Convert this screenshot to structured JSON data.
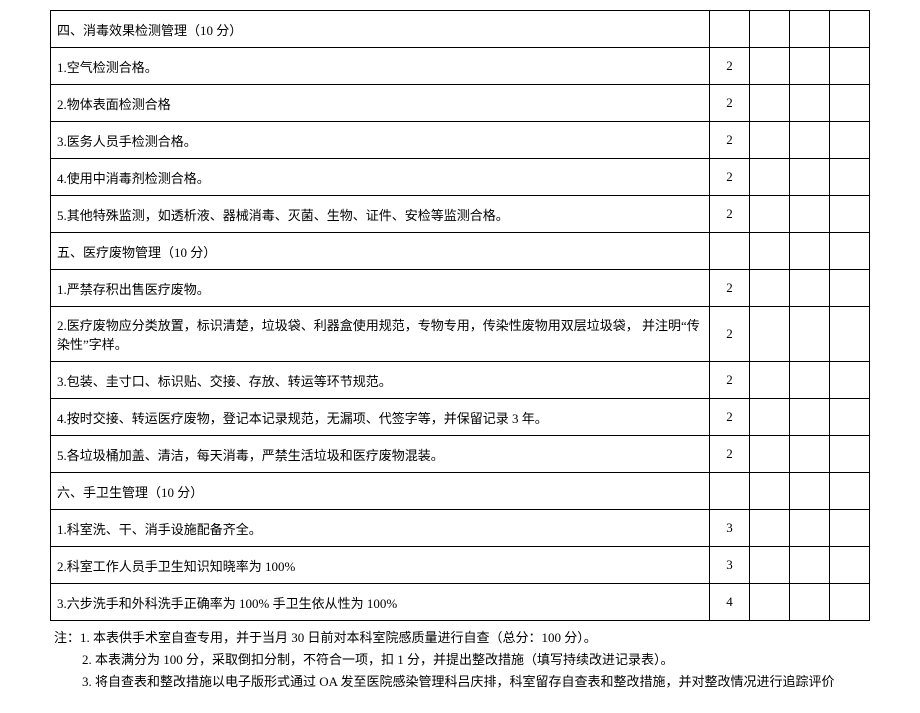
{
  "table": {
    "col_widths": {
      "desc": "auto",
      "score": 40,
      "blank": 40
    },
    "rows": [
      {
        "desc": "四、消毒效果检测管理（10 分）",
        "score": ""
      },
      {
        "desc": "1.空气检测合格。",
        "score": "2"
      },
      {
        "desc": "2.物体表面检测合格",
        "score": "2"
      },
      {
        "desc": "3.医务人员手检测合格。",
        "score": "2"
      },
      {
        "desc": "4.使用中消毒剂检测合格。",
        "score": "2"
      },
      {
        "desc": "5.其他特殊监测，如透析液、器械消毒、灭菌、生物、证件、安检等监测合格。",
        "score": "2"
      },
      {
        "desc": "五、医疗废物管理（10 分）",
        "score": ""
      },
      {
        "desc": "1.严禁存积出售医疗废物。",
        "score": "2"
      },
      {
        "desc": "2.医疗废物应分类放置，标识清楚，垃圾袋、利器盒使用规范，专物专用，传染性废物用双层垃圾袋，  并注明“传染性”字样。",
        "score": "2"
      },
      {
        "desc": "3.包装、圭寸口、标识贴、交接、存放、转运等环节规范。",
        "score": "2"
      },
      {
        "desc": "4.按时交接、转运医疗废物，登记本记录规范，无漏项、代签字等，并保留记录            3 年。",
        "score": "2"
      },
      {
        "desc": "5.各垃圾桶加盖、清洁，每天消毒，严禁生活垃圾和医疗废物混装。",
        "score": "2"
      },
      {
        "desc": "六、手卫生管理（10 分）",
        "score": ""
      },
      {
        "desc": "1.科室洗、干、消手设施配备齐全。",
        "score": "3"
      },
      {
        "desc": "2.科室工作人员手卫生知识知晓率为        100%",
        "score": "3"
      },
      {
        "desc": "3.六步洗手和外科洗手正确率为       100% 手卫生依从性为 100%",
        "score": "4"
      }
    ]
  },
  "notes": {
    "line1": "注：1. 本表供手术室自查专用，并于当月 30 日前对本科室院感质量进行自查（总分：100 分）。",
    "line2": "2. 本表满分为 100 分，采取倒扣分制，不符合一项，扣 1 分，并提出整改措施（填写持续改进记录表）。",
    "line3": "3. 将自查表和整改措施以电子版形式通过 OA 发至医院感染管理科吕庆排，科室留存自查表和整改措施，并对整改情况进行追踪评价"
  }
}
